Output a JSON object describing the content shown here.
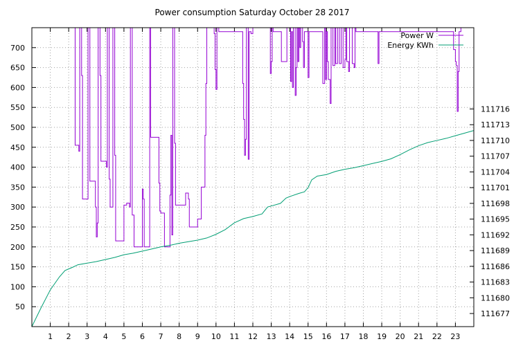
{
  "chart_data": {
    "type": "line",
    "title": "Power consumption Saturday October 28 2017",
    "xlabel": "",
    "ylabel": "",
    "xlim": [
      0,
      24
    ],
    "ylim": [
      0,
      750
    ],
    "y2lim": [
      111674.5,
      111731.5
    ],
    "x_ticks": [
      1,
      2,
      3,
      4,
      5,
      6,
      7,
      8,
      9,
      10,
      11,
      12,
      13,
      14,
      15,
      16,
      17,
      18,
      19,
      20,
      21,
      22,
      23
    ],
    "y_ticks": [
      50,
      100,
      150,
      200,
      250,
      300,
      350,
      400,
      450,
      500,
      550,
      600,
      650,
      700
    ],
    "y2_ticks": [
      111677,
      111680,
      111683,
      111686,
      111689,
      111692,
      111695,
      111698,
      111701,
      111704,
      111707,
      111710,
      111713,
      111716
    ],
    "grid": true,
    "legend_position": "top-right",
    "series": [
      {
        "name": "Power W",
        "color": "#9400d3",
        "axis": "y1",
        "points": [
          [
            2.35,
            750
          ],
          [
            2.35,
            455
          ],
          [
            2.55,
            455
          ],
          [
            2.55,
            440
          ],
          [
            2.6,
            440
          ],
          [
            2.6,
            750
          ],
          [
            2.7,
            750
          ],
          [
            2.7,
            630
          ],
          [
            2.75,
            630
          ],
          [
            2.75,
            320
          ],
          [
            3.05,
            320
          ],
          [
            3.05,
            750
          ],
          [
            3.15,
            750
          ],
          [
            3.15,
            365
          ],
          [
            3.45,
            365
          ],
          [
            3.45,
            300
          ],
          [
            3.5,
            300
          ],
          [
            3.5,
            225
          ],
          [
            3.55,
            225
          ],
          [
            3.55,
            260
          ],
          [
            3.6,
            260
          ],
          [
            3.6,
            750
          ],
          [
            3.7,
            750
          ],
          [
            3.7,
            630
          ],
          [
            3.75,
            630
          ],
          [
            3.75,
            415
          ],
          [
            4.05,
            415
          ],
          [
            4.05,
            400
          ],
          [
            4.1,
            400
          ],
          [
            4.1,
            750
          ],
          [
            4.2,
            750
          ],
          [
            4.2,
            370
          ],
          [
            4.25,
            370
          ],
          [
            4.25,
            300
          ],
          [
            4.4,
            300
          ],
          [
            4.4,
            750
          ],
          [
            4.5,
            750
          ],
          [
            4.5,
            430
          ],
          [
            4.55,
            430
          ],
          [
            4.55,
            215
          ],
          [
            5.0,
            215
          ],
          [
            5.0,
            305
          ],
          [
            5.15,
            305
          ],
          [
            5.15,
            310
          ],
          [
            5.3,
            310
          ],
          [
            5.3,
            300
          ],
          [
            5.35,
            300
          ],
          [
            5.35,
            750
          ],
          [
            5.45,
            750
          ],
          [
            5.45,
            280
          ],
          [
            5.55,
            280
          ],
          [
            5.55,
            200
          ],
          [
            6.0,
            200
          ],
          [
            6.0,
            345
          ],
          [
            6.05,
            345
          ],
          [
            6.05,
            320
          ],
          [
            6.1,
            320
          ],
          [
            6.1,
            200
          ],
          [
            6.4,
            200
          ],
          [
            6.4,
            750
          ],
          [
            6.45,
            750
          ],
          [
            6.45,
            475
          ],
          [
            6.9,
            475
          ],
          [
            6.9,
            360
          ],
          [
            6.95,
            360
          ],
          [
            6.95,
            290
          ],
          [
            7.0,
            290
          ],
          [
            7.0,
            285
          ],
          [
            7.2,
            285
          ],
          [
            7.2,
            200
          ],
          [
            7.5,
            200
          ],
          [
            7.5,
            330
          ],
          [
            7.55,
            330
          ],
          [
            7.55,
            480
          ],
          [
            7.6,
            480
          ],
          [
            7.6,
            230
          ],
          [
            7.65,
            230
          ],
          [
            7.65,
            750
          ],
          [
            7.75,
            750
          ],
          [
            7.75,
            460
          ],
          [
            7.8,
            460
          ],
          [
            7.8,
            305
          ],
          [
            8.35,
            305
          ],
          [
            8.35,
            335
          ],
          [
            8.5,
            335
          ],
          [
            8.5,
            320
          ],
          [
            8.55,
            320
          ],
          [
            8.55,
            250
          ],
          [
            9.0,
            250
          ],
          [
            9.0,
            270
          ],
          [
            9.2,
            270
          ],
          [
            9.2,
            350
          ],
          [
            9.4,
            350
          ],
          [
            9.4,
            480
          ],
          [
            9.45,
            480
          ],
          [
            9.45,
            610
          ],
          [
            9.5,
            610
          ],
          [
            9.5,
            750
          ],
          [
            9.9,
            750
          ],
          [
            9.9,
            735
          ],
          [
            9.95,
            735
          ],
          [
            9.95,
            645
          ],
          [
            10.0,
            645
          ],
          [
            10.0,
            595
          ],
          [
            10.05,
            595
          ],
          [
            10.05,
            750
          ],
          [
            10.15,
            750
          ],
          [
            10.15,
            740
          ],
          [
            11.45,
            740
          ],
          [
            11.45,
            610
          ],
          [
            11.5,
            610
          ],
          [
            11.5,
            520
          ],
          [
            11.55,
            520
          ],
          [
            11.55,
            430
          ],
          [
            11.6,
            430
          ],
          [
            11.6,
            470
          ],
          [
            11.65,
            470
          ],
          [
            11.65,
            750
          ],
          [
            11.75,
            750
          ],
          [
            11.75,
            420
          ],
          [
            11.8,
            420
          ],
          [
            11.8,
            740
          ],
          [
            11.9,
            740
          ],
          [
            11.9,
            735
          ],
          [
            12.0,
            735
          ],
          [
            12.0,
            750
          ],
          [
            12.95,
            750
          ],
          [
            12.95,
            635
          ],
          [
            13.0,
            635
          ],
          [
            13.0,
            665
          ],
          [
            13.05,
            665
          ],
          [
            13.05,
            750
          ],
          [
            13.1,
            750
          ],
          [
            13.1,
            740
          ],
          [
            13.55,
            740
          ],
          [
            13.55,
            665
          ],
          [
            13.85,
            665
          ],
          [
            13.85,
            750
          ],
          [
            14.05,
            750
          ],
          [
            14.05,
            615
          ],
          [
            14.1,
            615
          ],
          [
            14.1,
            740
          ],
          [
            14.15,
            740
          ],
          [
            14.15,
            600
          ],
          [
            14.2,
            600
          ],
          [
            14.2,
            750
          ],
          [
            14.3,
            750
          ],
          [
            14.3,
            580
          ],
          [
            14.35,
            580
          ],
          [
            14.35,
            650
          ],
          [
            14.4,
            650
          ],
          [
            14.4,
            750
          ],
          [
            14.45,
            750
          ],
          [
            14.45,
            665
          ],
          [
            14.5,
            665
          ],
          [
            14.5,
            750
          ],
          [
            14.55,
            750
          ],
          [
            14.55,
            700
          ],
          [
            14.6,
            700
          ],
          [
            14.6,
            750
          ],
          [
            14.7,
            750
          ],
          [
            14.7,
            715
          ],
          [
            14.75,
            715
          ],
          [
            14.75,
            650
          ],
          [
            14.8,
            650
          ],
          [
            14.8,
            740
          ],
          [
            15.0,
            740
          ],
          [
            15.0,
            625
          ],
          [
            15.05,
            625
          ],
          [
            15.05,
            740
          ],
          [
            15.8,
            740
          ],
          [
            15.8,
            610
          ],
          [
            15.9,
            610
          ],
          [
            15.9,
            750
          ],
          [
            15.95,
            750
          ],
          [
            15.95,
            620
          ],
          [
            16.0,
            620
          ],
          [
            16.0,
            740
          ],
          [
            16.05,
            740
          ],
          [
            16.05,
            665
          ],
          [
            16.1,
            665
          ],
          [
            16.1,
            620
          ],
          [
            16.2,
            620
          ],
          [
            16.2,
            560
          ],
          [
            16.25,
            560
          ],
          [
            16.25,
            750
          ],
          [
            16.35,
            750
          ],
          [
            16.35,
            655
          ],
          [
            16.45,
            655
          ],
          [
            16.45,
            750
          ],
          [
            16.5,
            750
          ],
          [
            16.5,
            660
          ],
          [
            16.6,
            660
          ],
          [
            16.6,
            750
          ],
          [
            16.7,
            750
          ],
          [
            16.7,
            660
          ],
          [
            16.8,
            660
          ],
          [
            16.8,
            750
          ],
          [
            16.9,
            750
          ],
          [
            16.9,
            650
          ],
          [
            17.0,
            650
          ],
          [
            17.0,
            670
          ],
          [
            17.05,
            670
          ],
          [
            17.05,
            750
          ],
          [
            17.1,
            750
          ],
          [
            17.1,
            665
          ],
          [
            17.2,
            665
          ],
          [
            17.2,
            640
          ],
          [
            17.25,
            640
          ],
          [
            17.25,
            750
          ],
          [
            17.4,
            750
          ],
          [
            17.4,
            660
          ],
          [
            17.5,
            660
          ],
          [
            17.5,
            650
          ],
          [
            17.55,
            650
          ],
          [
            17.55,
            750
          ],
          [
            17.6,
            750
          ],
          [
            17.6,
            740
          ],
          [
            18.8,
            740
          ],
          [
            18.8,
            660
          ],
          [
            18.85,
            660
          ],
          [
            18.85,
            740
          ],
          [
            22.9,
            740
          ],
          [
            22.9,
            695
          ],
          [
            23.0,
            695
          ],
          [
            23.0,
            665
          ],
          [
            23.05,
            665
          ],
          [
            23.05,
            655
          ],
          [
            23.1,
            655
          ],
          [
            23.1,
            540
          ],
          [
            23.15,
            540
          ],
          [
            23.15,
            640
          ],
          [
            23.2,
            640
          ],
          [
            23.2,
            740
          ],
          [
            23.3,
            740
          ],
          [
            23.3,
            750
          ]
        ]
      },
      {
        "name": "Energy KWh",
        "color": "#009e73",
        "axis": "y2",
        "points": [
          [
            0,
            111674.5
          ],
          [
            0.5,
            111678.1
          ],
          [
            1.0,
            111681.5
          ],
          [
            1.5,
            111684.0
          ],
          [
            1.8,
            111685.2
          ],
          [
            2.0,
            111685.5
          ],
          [
            2.2,
            111685.8
          ],
          [
            2.5,
            111686.3
          ],
          [
            3.0,
            111686.6
          ],
          [
            3.5,
            111686.9
          ],
          [
            4.0,
            111687.3
          ],
          [
            4.5,
            111687.7
          ],
          [
            5.0,
            111688.2
          ],
          [
            5.5,
            111688.5
          ],
          [
            6.0,
            111688.9
          ],
          [
            6.5,
            111689.3
          ],
          [
            7.0,
            111689.7
          ],
          [
            7.5,
            111690.0
          ],
          [
            8.0,
            111690.4
          ],
          [
            8.5,
            111690.7
          ],
          [
            9.0,
            111691.0
          ],
          [
            9.5,
            111691.4
          ],
          [
            10.0,
            111692.1
          ],
          [
            10.5,
            111693.0
          ],
          [
            11.0,
            111694.3
          ],
          [
            11.5,
            111695.1
          ],
          [
            12.0,
            111695.5
          ],
          [
            12.5,
            111696.0
          ],
          [
            12.8,
            111697.3
          ],
          [
            13.0,
            111697.5
          ],
          [
            13.5,
            111698.0
          ],
          [
            13.8,
            111699.0
          ],
          [
            14.0,
            111699.3
          ],
          [
            14.5,
            111699.9
          ],
          [
            14.8,
            111700.2
          ],
          [
            15.0,
            111701.0
          ],
          [
            15.2,
            111702.5
          ],
          [
            15.5,
            111703.2
          ],
          [
            16.0,
            111703.5
          ],
          [
            16.5,
            111704.1
          ],
          [
            17.0,
            111704.5
          ],
          [
            17.5,
            111704.8
          ],
          [
            18.0,
            111705.2
          ],
          [
            18.5,
            111705.6
          ],
          [
            19.0,
            111706.0
          ],
          [
            19.5,
            111706.5
          ],
          [
            20.0,
            111707.3
          ],
          [
            20.5,
            111708.2
          ],
          [
            21.0,
            111709.0
          ],
          [
            21.5,
            111709.6
          ],
          [
            22.0,
            111710.0
          ],
          [
            22.5,
            111710.4
          ],
          [
            23.0,
            111710.9
          ],
          [
            23.5,
            111711.4
          ],
          [
            24.0,
            111711.9
          ]
        ]
      }
    ]
  }
}
